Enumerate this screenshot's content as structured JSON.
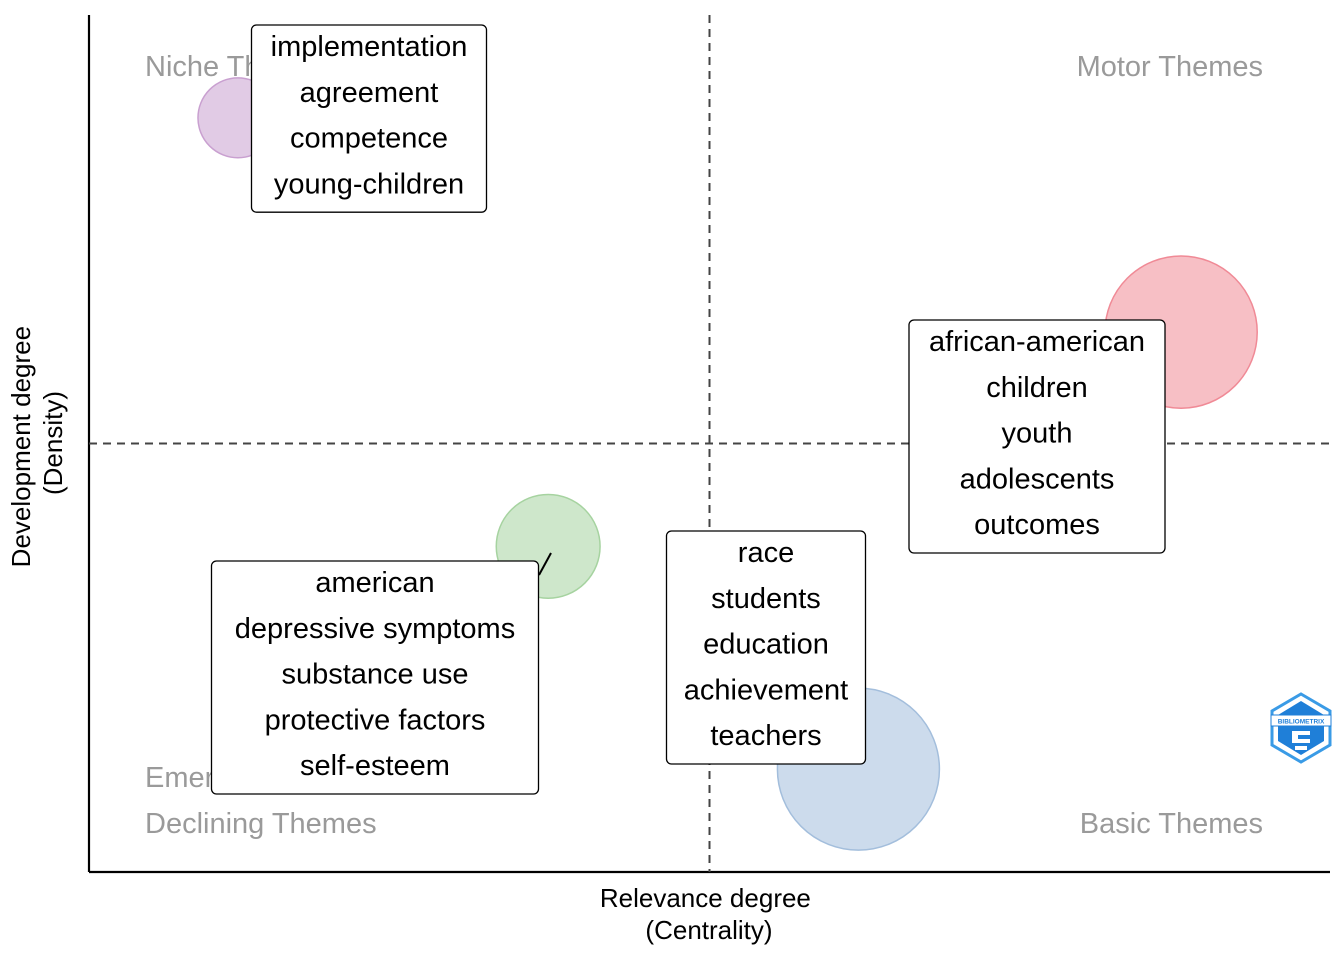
{
  "chart_data": {
    "type": "scatter",
    "xlabel": "Relevance degree\n(Centrality)",
    "ylabel": "Development degree\n(Density)",
    "quadrant_labels": {
      "top_left": "Niche Themes",
      "top_right": "Motor Themes",
      "bottom_left": "Emerging or\nDeclining Themes",
      "bottom_right": "Basic Themes"
    },
    "logo_text": "BIBLIOMETRIX",
    "grid": false,
    "xlim": [
      0,
      1
    ],
    "ylim": [
      0,
      1
    ],
    "mean_x": 0.5,
    "mean_y": 0.5,
    "clusters": [
      {
        "id": "niche",
        "terms": [
          "implementation",
          "agreement",
          "competence",
          "young-children"
        ],
        "centrality": 0.12,
        "density": 0.88,
        "size": 0.15,
        "color": "#c9a0d0"
      },
      {
        "id": "motor",
        "terms": [
          "african-american",
          "children",
          "youth",
          "adolescents",
          "outcomes"
        ],
        "centrality": 0.88,
        "density": 0.63,
        "size": 0.86,
        "color": "#f08a96"
      },
      {
        "id": "emerging",
        "terms": [
          "american",
          "depressive symptoms",
          "substance use",
          "protective factors",
          "self-esteem"
        ],
        "centrality": 0.37,
        "density": 0.38,
        "size": 0.32,
        "color": "#a6d3a0"
      },
      {
        "id": "basic",
        "terms": [
          "race",
          "students",
          "education",
          "achievement",
          "teachers"
        ],
        "centrality": 0.62,
        "density": 0.12,
        "size": 1.0,
        "color": "#a3bedc"
      }
    ]
  }
}
